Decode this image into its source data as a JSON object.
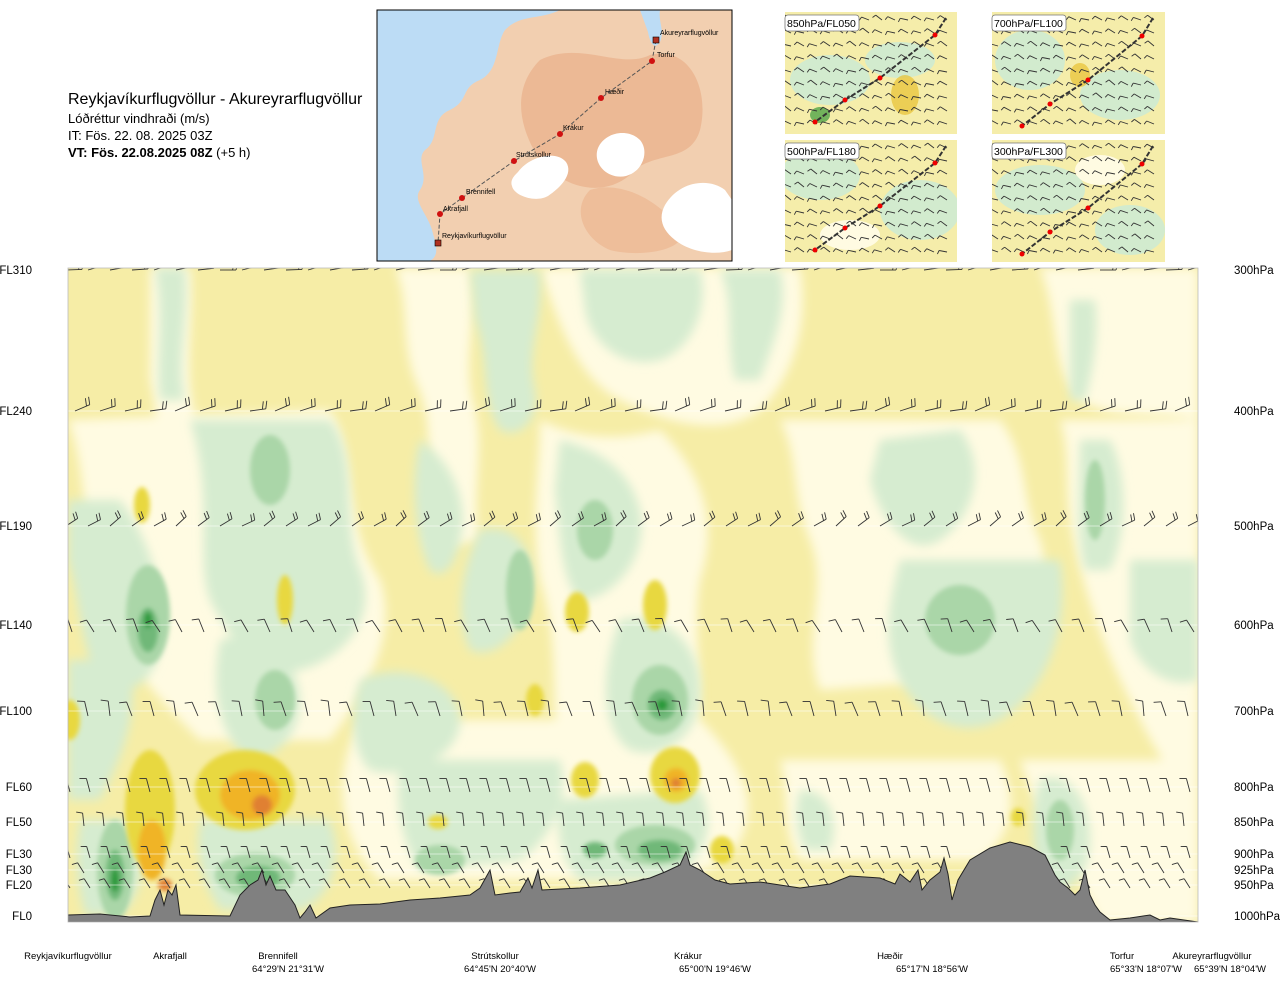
{
  "header": {
    "route": "Reykjavíkurflugvöllur - Akureyrarflugvöllur",
    "product": "Lóðréttur vindhraði (m/s)",
    "issue_time": "IT: Fös. 22. 08. 2025 03Z",
    "valid_time_bold": "VT: Fös. 22.08.2025 08Z",
    "valid_time_offset": "(+5 h)"
  },
  "inset_map": {
    "points": [
      {
        "label": "Akureyrarflugvöllur",
        "type": "airport"
      },
      {
        "label": "Torfur",
        "type": "waypoint"
      },
      {
        "label": "Hæðir",
        "type": "waypoint"
      },
      {
        "label": "Krákur",
        "type": "waypoint"
      },
      {
        "label": "Strútskollur",
        "type": "waypoint"
      },
      {
        "label": "Brennifell",
        "type": "waypoint"
      },
      {
        "label": "Akrafjall",
        "type": "waypoint"
      },
      {
        "label": "Reykjavíkurflugvöllur",
        "type": "airport"
      }
    ],
    "colors": {
      "sea": "#bcdcf5",
      "land": "#f1c7a4",
      "ice": "#ffffff",
      "track": "#555555",
      "marker": "#dd1111"
    }
  },
  "level_maps": [
    {
      "label": "850hPa/FL050"
    },
    {
      "label": "700hPa/FL100"
    },
    {
      "label": "500hPa/FL180"
    },
    {
      "label": "300hPa/FL300"
    }
  ],
  "chart_data": {
    "type": "heatmap",
    "title": "Lóðréttur vindhraði (m/s)",
    "y_levels": [
      {
        "fl": "FL310",
        "hpa": "300hPa"
      },
      {
        "fl": "FL240",
        "hpa": "400hPa"
      },
      {
        "fl": "FL190",
        "hpa": "500hPa"
      },
      {
        "fl": "FL140",
        "hpa": "600hPa"
      },
      {
        "fl": "FL100",
        "hpa": "700hPa"
      },
      {
        "fl": "FL60",
        "hpa": "800hPa"
      },
      {
        "fl": "FL50",
        "hpa": "850hPa"
      },
      {
        "fl": "FL30",
        "hpa": "900hPa"
      },
      {
        "fl": "FL30",
        "hpa": "925hPa"
      },
      {
        "fl": "FL20",
        "hpa": "950hPa"
      },
      {
        "fl": "FL0",
        "hpa": "1000hPa"
      }
    ],
    "x_waypoints": [
      {
        "name": "Reykjavíkurflugvöllur",
        "coord": ""
      },
      {
        "name": "Akrafjall",
        "coord": ""
      },
      {
        "name": "Brennifell",
        "coord": "64°29'N 21°31'W"
      },
      {
        "name": "Strútskollur",
        "coord": "64°45'N 20°40'W"
      },
      {
        "name": "Krákur",
        "coord": "65°00'N 19°46'W"
      },
      {
        "name": "Hæðir",
        "coord": "65°17'N 18°56'W"
      },
      {
        "name": "Torfur",
        "coord": "65°33'N 18°07'W"
      },
      {
        "name": "Akureyrarflugvöllur",
        "coord": "65°39'N 18°04'W"
      }
    ],
    "colors": {
      "strong_sink_1": "#e8d840",
      "strong_sink_2": "#f0b428",
      "strong_sink_3": "#e08030",
      "weak_sink": "#f6eda6",
      "neutral": "#fffbe2",
      "weak_rise": "#d6ecd0",
      "rise": "#aad6a8",
      "strong_rise": "#70b878",
      "strongest_rise": "#2a9a3a",
      "terrain": "#808080"
    }
  }
}
